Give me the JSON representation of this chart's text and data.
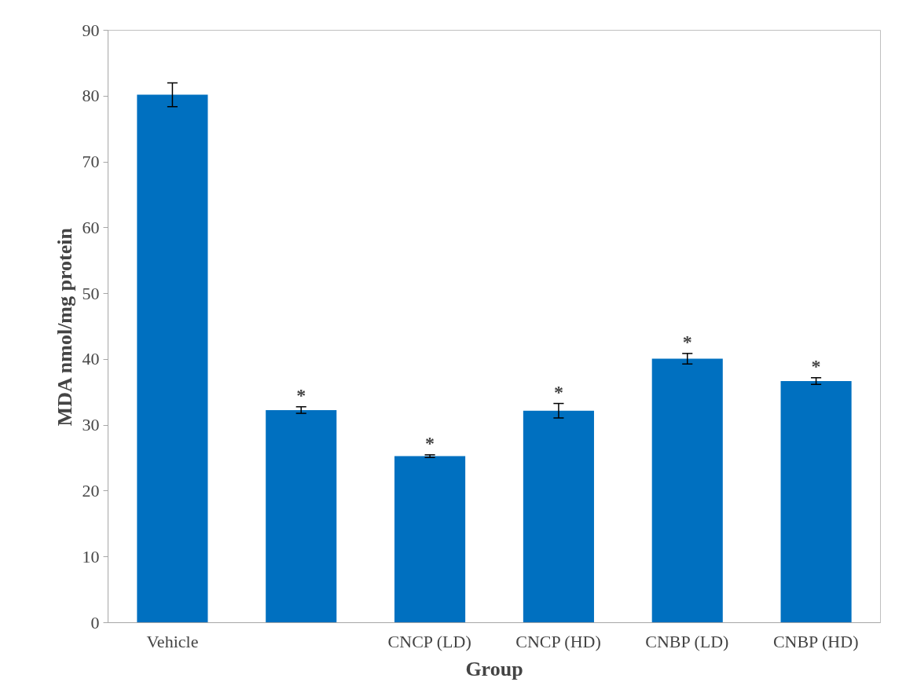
{
  "chart_data": {
    "type": "bar",
    "xlabel": "Group",
    "ylabel": "MDA nmol/mg protein",
    "categories": [
      "Vehicle",
      null,
      "CNCP (LD)",
      "CNCP (HD)",
      "CNBP (LD)",
      "CNBP (HD)"
    ],
    "values": [
      80.2,
      32.3,
      25.3,
      32.2,
      40.1,
      36.7
    ],
    "errors": [
      1.8,
      0.5,
      0.2,
      1.1,
      0.8,
      0.5
    ],
    "value_labels": [
      null,
      "*",
      "*",
      "*",
      "*",
      "*"
    ],
    "color": "#0070c0",
    "ylim": [
      0,
      90
    ],
    "yticks": [
      0,
      10,
      20,
      30,
      40,
      50,
      60,
      70,
      80,
      90
    ],
    "grid": false
  }
}
